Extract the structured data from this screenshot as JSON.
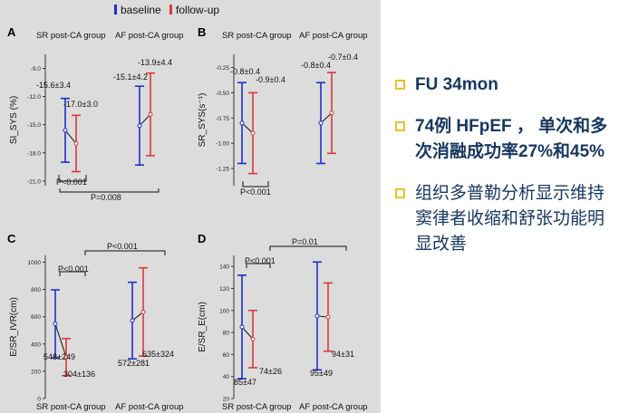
{
  "legend": {
    "baseline_label": "baseline",
    "followup_label": "follow-up",
    "baseline_color": "#1f2fc8",
    "followup_color": "#d83a3a"
  },
  "bullets": [
    {
      "text": "FU 34mon",
      "bold": true
    },
    {
      "text": "74例 HFpEF ， 单次和多次消融成功率27%和45%",
      "bold": true
    },
    {
      "text": "组织多普勒分析显示维持窦律者收缩和舒张功能明显改善",
      "bold": false
    }
  ],
  "chart_data": [
    {
      "panel": "A",
      "type": "scatter",
      "ylabel": "SI_SYS (%)",
      "yticks": [
        "-9.0",
        "-12.0",
        "-15.0",
        "-18.0",
        "-21.0"
      ],
      "ylim": [
        -21.5,
        -7.5
      ],
      "groups": [
        "SR post-CA group",
        "AF post-CA group"
      ],
      "series": [
        {
          "name": "baseline",
          "values": [
            -15.6,
            -15.1
          ],
          "errors": [
            3.4,
            4.2
          ]
        },
        {
          "name": "follow-up",
          "values": [
            -17.0,
            -13.9
          ],
          "errors": [
            3.0,
            4.4
          ]
        }
      ],
      "value_labels": [
        "-15.6±3.4",
        "-17.0±3.0",
        "-15.1±4.2",
        "-13.9±4.4"
      ],
      "annotations": [
        "P<0.001",
        "P=0.008"
      ]
    },
    {
      "panel": "B",
      "type": "scatter",
      "ylabel": "SR_SYS(s⁻¹)",
      "yticks": [
        "-0.25",
        "-0.50",
        "-0.75",
        "-1.00",
        "-1.25"
      ],
      "ylim": [
        -1.42,
        -0.12
      ],
      "groups": [
        "SR post-CA group",
        "AF post-CA group"
      ],
      "series": [
        {
          "name": "baseline",
          "values": [
            -0.8,
            -0.8
          ],
          "errors": [
            0.4,
            0.4
          ]
        },
        {
          "name": "follow-up",
          "values": [
            -0.9,
            -0.7
          ],
          "errors": [
            0.4,
            0.4
          ]
        }
      ],
      "value_labels": [
        "-0.8±0.4",
        "-0.9±0.4",
        "-0.8±0.4",
        "-0.7±0.4"
      ],
      "annotations": [
        "P<0.001"
      ]
    },
    {
      "panel": "C",
      "type": "scatter",
      "ylabel": "E/SR_IVR(cm)",
      "yticks": [
        "1000",
        "800",
        "600",
        "400",
        "200",
        "0"
      ],
      "ylim": [
        0,
        1050
      ],
      "groups": [
        "SR post-CA group",
        "AF post-CA group"
      ],
      "series": [
        {
          "name": "baseline",
          "values": [
            548,
            572
          ],
          "errors": [
            249,
            281
          ]
        },
        {
          "name": "follow-up",
          "values": [
            304,
            635
          ],
          "errors": [
            136,
            324
          ]
        }
      ],
      "value_labels": [
        "548±249",
        "304±136",
        "572±281",
        "635±324"
      ],
      "annotations": [
        "P<0.001",
        "P<0.001"
      ]
    },
    {
      "panel": "D",
      "type": "scatter",
      "ylabel": "E/SR_E(cm)",
      "yticks": [
        "140",
        "120",
        "100",
        "80",
        "60",
        "40",
        "20"
      ],
      "ylim": [
        20,
        150
      ],
      "groups": [
        "SR post-CA group",
        "AF post-CA group"
      ],
      "series": [
        {
          "name": "baseline",
          "values": [
            85,
            95
          ],
          "errors": [
            47,
            49
          ]
        },
        {
          "name": "follow-up",
          "values": [
            74,
            94
          ],
          "errors": [
            26,
            31
          ]
        }
      ],
      "value_labels": [
        "85±47",
        "74±26",
        "95±49",
        "94±31"
      ],
      "annotations": [
        "P<0.001",
        "P=0.01"
      ]
    }
  ]
}
